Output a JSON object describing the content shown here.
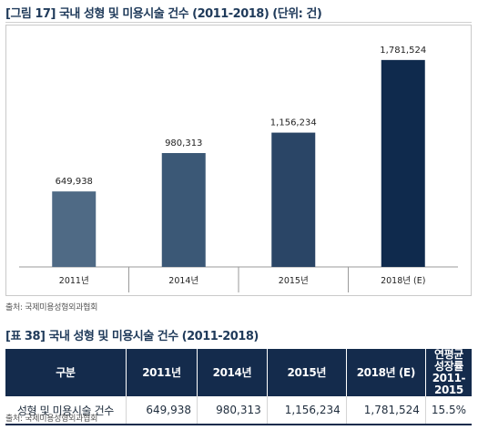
{
  "figure": {
    "title": "[그림 17] 국내 성형 및 미용시술 건수 (2011-2018) (단위: 건)",
    "source": "출처: 국제미용성형외과협회"
  },
  "chart_data": {
    "type": "bar",
    "categories": [
      "2011년",
      "2014년",
      "2015년",
      "2018년 (E)"
    ],
    "values": [
      649938,
      980313,
      1156234,
      1781524
    ],
    "value_labels": [
      "649,938",
      "980,313",
      "1,156,234",
      "1,781,524"
    ],
    "bar_colors": [
      "#4f6a85",
      "#3b5876",
      "#2a4566",
      "#0f2a4d"
    ],
    "ylim": [
      0,
      2000000
    ],
    "grid": false,
    "legend": "none"
  },
  "table": {
    "title": "[표 38] 국내 성형 및 미용시술 건수 (2011-2018)",
    "headers": [
      "구분",
      "2011년",
      "2014년",
      "2015년",
      "2018년 (E)",
      "연평균 성장률",
      "2011-2015"
    ],
    "row": [
      "성형 및 미용시술 건수",
      "649,938",
      "980,313",
      "1,156,234",
      "1,781,524",
      "15.5%"
    ],
    "source": "출처: 국제미용성형외과협회"
  }
}
